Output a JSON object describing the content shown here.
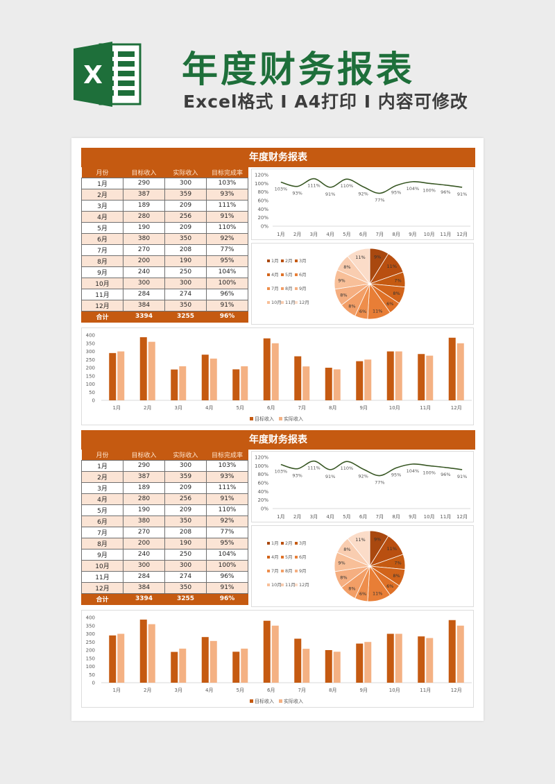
{
  "header": {
    "logo_letter": "X",
    "title": "年度财务报表",
    "subtitle": "Excel格式 I A4打印 I 内容可修改"
  },
  "colors": {
    "accent": "#c55a11",
    "target_bar": "#c55a11",
    "actual_bar": "#f4b183",
    "line": "#375623",
    "header_green": "#1e6f3a"
  },
  "sections": [
    {
      "title": "年度财务报表",
      "table": {
        "headers": [
          "月份",
          "目标收入",
          "实际收入",
          "目标完成率"
        ],
        "rows": [
          [
            "1月",
            "290",
            "300",
            "103%"
          ],
          [
            "2月",
            "387",
            "359",
            "93%"
          ],
          [
            "3月",
            "189",
            "209",
            "111%"
          ],
          [
            "4月",
            "280",
            "256",
            "91%"
          ],
          [
            "5月",
            "190",
            "209",
            "110%"
          ],
          [
            "6月",
            "380",
            "350",
            "92%"
          ],
          [
            "7月",
            "270",
            "208",
            "77%"
          ],
          [
            "8月",
            "200",
            "190",
            "95%"
          ],
          [
            "9月",
            "240",
            "250",
            "104%"
          ],
          [
            "10月",
            "300",
            "300",
            "100%"
          ],
          [
            "11月",
            "284",
            "274",
            "96%"
          ],
          [
            "12月",
            "384",
            "350",
            "91%"
          ]
        ],
        "total": [
          "合计",
          "3394",
          "3255",
          "96%"
        ]
      }
    },
    {
      "title": "年度财务报表",
      "table": {
        "headers": [
          "月份",
          "目标收入",
          "实际收入",
          "目标完成率"
        ],
        "rows": [
          [
            "1月",
            "290",
            "300",
            "103%"
          ],
          [
            "2月",
            "387",
            "359",
            "93%"
          ],
          [
            "3月",
            "189",
            "209",
            "111%"
          ],
          [
            "4月",
            "280",
            "256",
            "91%"
          ],
          [
            "5月",
            "190",
            "209",
            "110%"
          ],
          [
            "6月",
            "380",
            "350",
            "92%"
          ],
          [
            "7月",
            "270",
            "208",
            "77%"
          ],
          [
            "8月",
            "200",
            "190",
            "95%"
          ],
          [
            "9月",
            "240",
            "250",
            "104%"
          ],
          [
            "10月",
            "300",
            "300",
            "100%"
          ],
          [
            "11月",
            "284",
            "274",
            "96%"
          ],
          [
            "12月",
            "384",
            "350",
            "91%"
          ]
        ],
        "total": [
          "合计",
          "3394",
          "3255",
          "96%"
        ]
      }
    }
  ],
  "chart_data": [
    {
      "type": "line",
      "categories": [
        "1月",
        "2月",
        "3月",
        "4月",
        "5月",
        "6月",
        "7月",
        "8月",
        "9月",
        "10月",
        "11月",
        "12月"
      ],
      "values": [
        103,
        93,
        111,
        91,
        110,
        92,
        77,
        95,
        104,
        100,
        96,
        91
      ],
      "data_labels": [
        "103%",
        "93%",
        "111%",
        "91%",
        "110%",
        "92%",
        "77%",
        "95%",
        "104%",
        "100%",
        "96%",
        "91%"
      ],
      "yticks": [
        "0%",
        "20%",
        "40%",
        "60%",
        "80%",
        "100%",
        "120%"
      ],
      "ylim": [
        0,
        120
      ]
    },
    {
      "type": "pie",
      "categories": [
        "1月",
        "2月",
        "3月",
        "4月",
        "5月",
        "6月",
        "7月",
        "8月",
        "9月",
        "10月",
        "11月",
        "12月"
      ],
      "values": [
        9,
        11,
        7,
        8,
        6,
        11,
        6,
        8,
        8,
        9,
        8,
        11
      ],
      "data_labels": [
        "9%",
        "11%",
        "7%",
        "8%",
        "6%",
        "11%",
        "6%",
        "8%",
        "8%",
        "9%",
        "8%",
        "11%"
      ],
      "colors": [
        "#a9480f",
        "#b94f10",
        "#c55a11",
        "#d2641a",
        "#df7127",
        "#e87e36",
        "#ee8e4c",
        "#f29e66",
        "#f5ae80",
        "#f8bf98",
        "#f9cdb0",
        "#fbdcc8"
      ]
    },
    {
      "type": "bar",
      "categories": [
        "1月",
        "2月",
        "3月",
        "4月",
        "5月",
        "6月",
        "7月",
        "8月",
        "9月",
        "10月",
        "11月",
        "12月"
      ],
      "series": [
        {
          "name": "目标收入",
          "values": [
            290,
            387,
            189,
            280,
            190,
            380,
            270,
            200,
            240,
            300,
            284,
            384
          ]
        },
        {
          "name": "实际收入",
          "values": [
            300,
            359,
            209,
            256,
            209,
            350,
            208,
            190,
            250,
            300,
            274,
            350
          ]
        }
      ],
      "yticks": [
        "0",
        "50",
        "100",
        "150",
        "200",
        "250",
        "300",
        "350",
        "400"
      ],
      "ylim": [
        0,
        400
      ],
      "legend": "bottom"
    }
  ]
}
